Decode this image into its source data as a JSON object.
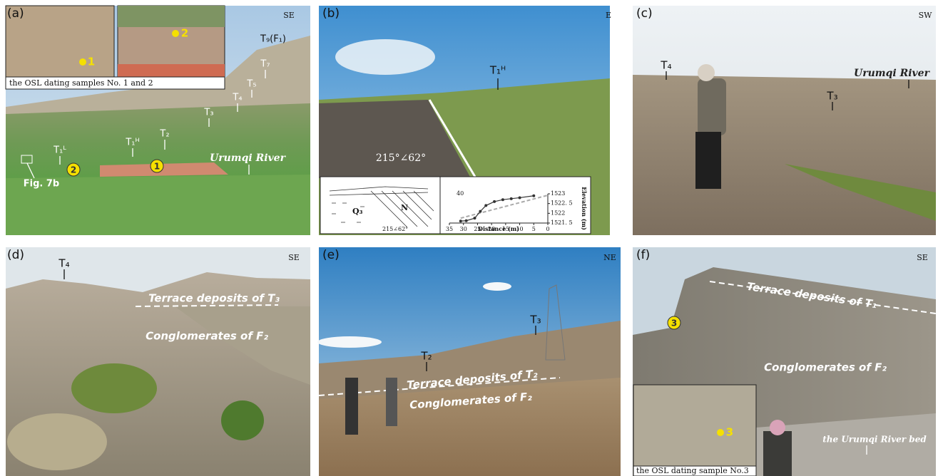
{
  "panels": [
    {
      "letter": "(a)",
      "direction": "SE",
      "inset_caption": "the OSL dating samples No. 1 and 2",
      "labels": [
        "T₉(F₁)",
        "T₇",
        "T₅",
        "T₄",
        "T₃",
        "T₂",
        "T₁ᴴ",
        "T₁ᴸ",
        "Urumqi River",
        "Fig. 7b"
      ],
      "samples": [
        "1",
        "2"
      ]
    },
    {
      "letter": "(b)",
      "direction": "E",
      "labels": [
        "T₁ᴴ",
        "215°∠62°"
      ],
      "sketch": {
        "unit": "Q₃",
        "fault": "N",
        "attitude": "215∠62°"
      },
      "profile": {
        "type": "line",
        "xlabel": "Distance (m)",
        "ylabel": "Elevation (m)",
        "annotation": "40",
        "x": [
          31,
          29,
          26,
          24,
          22,
          19,
          16,
          13,
          10,
          5
        ],
        "values": [
          1521.6,
          1521.62,
          1521.75,
          1522.1,
          1522.4,
          1522.6,
          1522.7,
          1522.75,
          1522.8,
          1522.9
        ],
        "xlim": [
          35,
          0
        ],
        "ylim": [
          1521.5,
          1523
        ],
        "xticks": [
          35,
          30,
          25,
          20,
          15,
          10,
          5,
          0
        ],
        "yticks": [
          {
            "value": 1521.5,
            "label": "1521. 5"
          },
          1522,
          {
            "value": 1522.5,
            "label": "1522. 5"
          },
          1523
        ],
        "color": "#333333"
      }
    },
    {
      "letter": "(c)",
      "direction": "SW",
      "labels": [
        "T₄",
        "Urumqi River",
        "T₃"
      ]
    },
    {
      "letter": "(d)",
      "direction": "SE",
      "labels": [
        "T₄",
        "Terrace deposits of T₃",
        "Conglomerates of F₂"
      ]
    },
    {
      "letter": "(e)",
      "direction": "NE",
      "labels": [
        "T₃",
        "T₂",
        "Terrace deposits of T₂",
        "Conglomerates of F₂"
      ]
    },
    {
      "letter": "(f)",
      "direction": "SE",
      "inset_caption": "the OSL dating sample No.3",
      "labels": [
        "Terrace deposits of T₁",
        "Conglomerates of F₂",
        "the Urumqi River bed"
      ],
      "samples": [
        "3"
      ]
    }
  ]
}
